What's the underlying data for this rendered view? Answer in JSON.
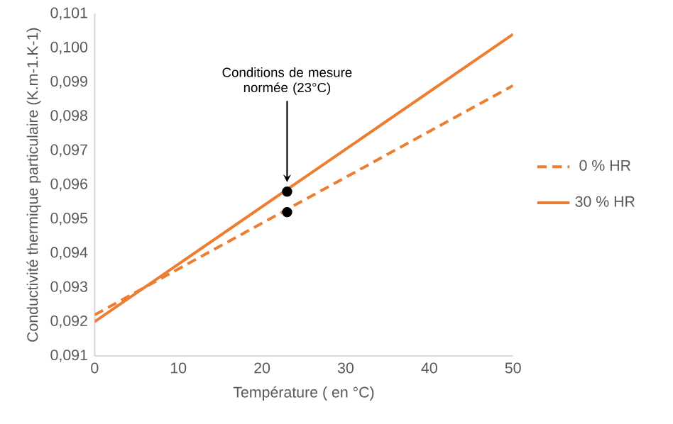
{
  "chart_data": {
    "type": "line",
    "xlabel": "Température ( en °C)",
    "ylabel": "Conductivité thermique particulaire (K.m-1.K-1)",
    "xlim": [
      0,
      50
    ],
    "xticks": [
      0,
      10,
      20,
      30,
      40,
      50
    ],
    "ylim": [
      0.091,
      0.101
    ],
    "yticks": [
      {
        "value": 0.091,
        "label": "0,091"
      },
      {
        "value": 0.092,
        "label": "0,092"
      },
      {
        "value": 0.093,
        "label": "0,093"
      },
      {
        "value": 0.094,
        "label": "0,094"
      },
      {
        "value": 0.095,
        "label": "0,095"
      },
      {
        "value": 0.096,
        "label": "0,096"
      },
      {
        "value": 0.097,
        "label": "0,097"
      },
      {
        "value": 0.098,
        "label": "0,098"
      },
      {
        "value": 0.099,
        "label": "0,099"
      },
      {
        "value": 0.1,
        "label": "0,100"
      },
      {
        "value": 0.101,
        "label": "0,101"
      }
    ],
    "grid": false,
    "legend": "right",
    "annotations": [
      "Conditions de mesure normée (23°C)"
    ],
    "series": [
      {
        "name": "0 % HR",
        "color": "#ed7d31",
        "line_style": "dashed",
        "x": [
          0,
          50
        ],
        "values": [
          0.0922,
          0.0989
        ]
      },
      {
        "name": "30 % HR",
        "color": "#ed7d31",
        "line_style": "solid",
        "x": [
          0,
          50
        ],
        "values": [
          0.092,
          0.1004
        ]
      },
      {
        "color": "#000000",
        "type": "scatter",
        "marker": "circle",
        "x": [
          23,
          23
        ],
        "values": [
          0.0958,
          0.0952
        ]
      }
    ]
  }
}
